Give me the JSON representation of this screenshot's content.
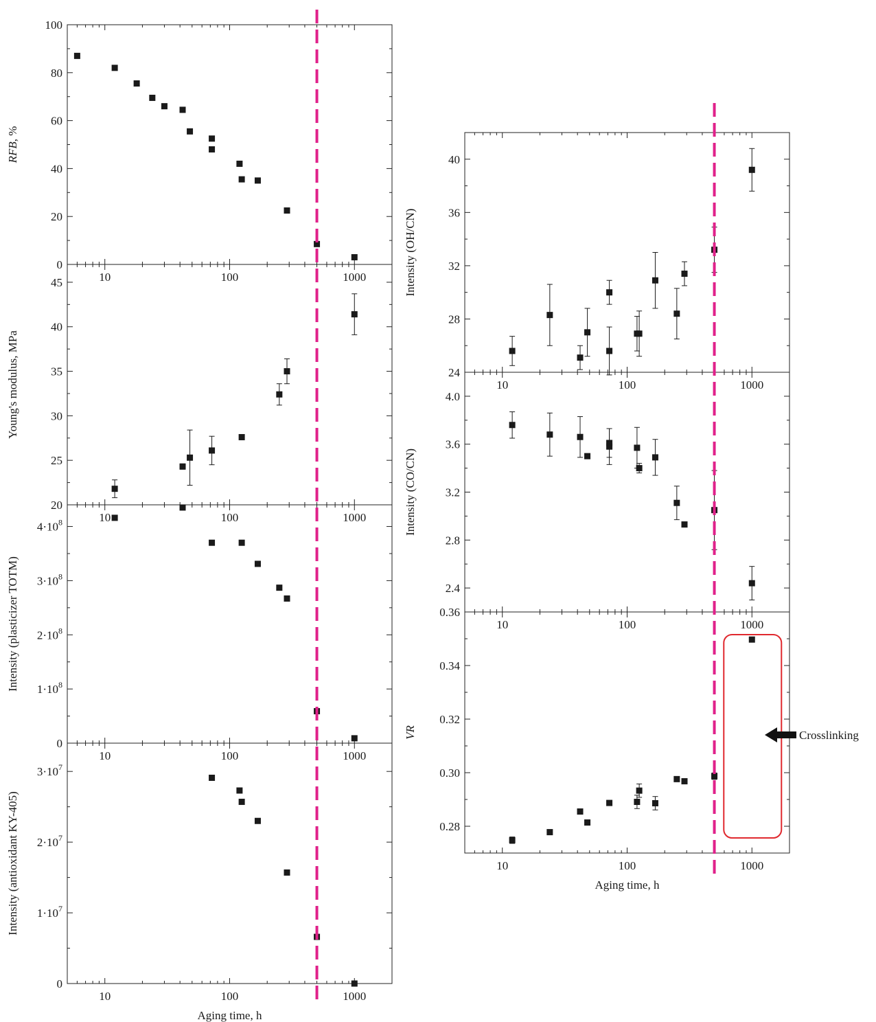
{
  "colors": {
    "marker": "#1a1a1a",
    "axis": "#222222",
    "threshold_line": "#e0218a",
    "highlight_box": "#e0282e",
    "arrow": "#111111"
  },
  "threshold_x": 500,
  "annotation": {
    "text": "Crosslinking",
    "arrow_icon": "left-arrow-icon"
  },
  "chart_data": [
    {
      "id": "rfb",
      "type": "scatter",
      "xscale": "log",
      "xlim": [
        5,
        2000
      ],
      "ylim": [
        0,
        100
      ],
      "yticks": [
        0,
        20,
        40,
        60,
        80,
        100
      ],
      "ytick_labels": [
        "0",
        "20",
        "40",
        "60",
        "80",
        "100"
      ],
      "xtick_labels": [
        "10",
        "100",
        "1000"
      ],
      "ylabel_main": "RFB",
      "ylabel_suffix": ", %",
      "xlabel": "",
      "points": [
        {
          "x": 6,
          "y": 87
        },
        {
          "x": 12,
          "y": 82
        },
        {
          "x": 18,
          "y": 75.5
        },
        {
          "x": 24,
          "y": 69.5
        },
        {
          "x": 30,
          "y": 66
        },
        {
          "x": 42,
          "y": 64.5
        },
        {
          "x": 48,
          "y": 55.5
        },
        {
          "x": 72,
          "y": 52.5
        },
        {
          "x": 72,
          "y": 48
        },
        {
          "x": 120,
          "y": 42
        },
        {
          "x": 125,
          "y": 35.5
        },
        {
          "x": 168,
          "y": 35
        },
        {
          "x": 288,
          "y": 22.5
        },
        {
          "x": 500,
          "y": 8.5
        },
        {
          "x": 1000,
          "y": 3
        }
      ]
    },
    {
      "id": "youngs",
      "type": "scatter",
      "xscale": "log",
      "xlim": [
        5,
        2000
      ],
      "ylim": [
        20,
        47
      ],
      "yticks": [
        20,
        25,
        30,
        35,
        40,
        45
      ],
      "ytick_labels": [
        "20",
        "25",
        "30",
        "35",
        "40",
        "45"
      ],
      "xtick_labels": [
        "10",
        "100",
        "1000"
      ],
      "ylabel": "Young's modulus, MPa",
      "xlabel": "",
      "points": [
        {
          "x": 12,
          "y": 21.8,
          "err": 1.0
        },
        {
          "x": 42,
          "y": 24.3,
          "err": 0.3
        },
        {
          "x": 48,
          "y": 25.3,
          "err": 3.1
        },
        {
          "x": 72,
          "y": 26.1,
          "err": 1.6
        },
        {
          "x": 125,
          "y": 27.6
        },
        {
          "x": 250,
          "y": 32.4,
          "err": 1.2
        },
        {
          "x": 288,
          "y": 35.0,
          "err": 1.4
        },
        {
          "x": 1000,
          "y": 41.4,
          "err": 2.3
        }
      ]
    },
    {
      "id": "totm",
      "type": "scatter",
      "xscale": "log",
      "xlim": [
        5,
        2000
      ],
      "ylim": [
        0,
        440000000
      ],
      "yticks": [
        0,
        100000000,
        200000000,
        300000000,
        400000000
      ],
      "ytick_labels": [
        {
          "mant": "0",
          "exp": ""
        },
        {
          "mant": "1·10",
          "exp": "8"
        },
        {
          "mant": "2·10",
          "exp": "8"
        },
        {
          "mant": "3·10",
          "exp": "8"
        },
        {
          "mant": "4·10",
          "exp": "8"
        }
      ],
      "xtick_labels": [
        "10",
        "100",
        "1000"
      ],
      "ylabel": "Intensity (plasticizer TOTM)",
      "xlabel": "",
      "points": [
        {
          "x": 12,
          "y": 416000000
        },
        {
          "x": 42,
          "y": 435000000
        },
        {
          "x": 72,
          "y": 370000000
        },
        {
          "x": 125,
          "y": 370000000
        },
        {
          "x": 168,
          "y": 331000000
        },
        {
          "x": 250,
          "y": 287000000
        },
        {
          "x": 288,
          "y": 267000000
        },
        {
          "x": 500,
          "y": 59000000
        },
        {
          "x": 1000,
          "y": 9000000
        }
      ]
    },
    {
      "id": "ky405",
      "type": "scatter",
      "xscale": "log",
      "xlim": [
        5,
        2000
      ],
      "ylim": [
        0,
        34000000
      ],
      "yticks": [
        0,
        10000000,
        20000000,
        30000000
      ],
      "ytick_labels": [
        {
          "mant": "0",
          "exp": ""
        },
        {
          "mant": "1·10",
          "exp": "7"
        },
        {
          "mant": "2·10",
          "exp": "7"
        },
        {
          "mant": "3·10",
          "exp": "7"
        }
      ],
      "xtick_labels": [
        "10",
        "100",
        "1000"
      ],
      "ylabel": "Intensity (antioxidant KY-405)",
      "xlabel": "Aging time, h",
      "points": [
        {
          "x": 72,
          "y": 29100000
        },
        {
          "x": 120,
          "y": 27300000
        },
        {
          "x": 125,
          "y": 25700000
        },
        {
          "x": 168,
          "y": 23000000
        },
        {
          "x": 288,
          "y": 15700000
        },
        {
          "x": 500,
          "y": 6600000
        },
        {
          "x": 1000,
          "y": 0
        }
      ]
    },
    {
      "id": "ohcn",
      "type": "scatter",
      "xscale": "log",
      "xlim": [
        5,
        2000
      ],
      "ylim": [
        24,
        42
      ],
      "yticks": [
        24,
        28,
        32,
        36,
        40
      ],
      "ytick_labels": [
        "24",
        "28",
        "32",
        "36",
        "40"
      ],
      "xtick_labels": [
        "10",
        "100",
        "1000"
      ],
      "ylabel": "Intensity (OH/CN)",
      "xlabel": "",
      "points": [
        {
          "x": 12,
          "y": 25.6,
          "err": 1.1
        },
        {
          "x": 24,
          "y": 28.3,
          "err": 2.3
        },
        {
          "x": 42,
          "y": 25.1,
          "err": 0.9
        },
        {
          "x": 48,
          "y": 27.0,
          "err": 1.8
        },
        {
          "x": 72,
          "y": 30.0,
          "err": 0.9
        },
        {
          "x": 72,
          "y": 25.6,
          "err": 1.8
        },
        {
          "x": 120,
          "y": 26.9,
          "err": 1.3
        },
        {
          "x": 125,
          "y": 26.9,
          "err": 1.7
        },
        {
          "x": 168,
          "y": 30.9,
          "err": 2.1
        },
        {
          "x": 250,
          "y": 28.4,
          "err": 1.9
        },
        {
          "x": 288,
          "y": 31.4,
          "err": 0.9
        },
        {
          "x": 500,
          "y": 33.2,
          "err": 1.7
        },
        {
          "x": 1000,
          "y": 39.2,
          "err": 1.6
        }
      ]
    },
    {
      "id": "cocn",
      "type": "scatter",
      "xscale": "log",
      "xlim": [
        5,
        2000
      ],
      "ylim": [
        2.2,
        4.2
      ],
      "yticks": [
        2.4,
        2.8,
        3.2,
        3.6,
        4.0
      ],
      "ytick_labels": [
        "2.4",
        "2.8",
        "3.2",
        "3.6",
        "4.0"
      ],
      "xtick_labels": [
        "10",
        "100",
        "1000"
      ],
      "ylabel": "Intensity (CO/CN)",
      "xlabel": "",
      "points": [
        {
          "x": 12,
          "y": 3.76,
          "err": 0.11
        },
        {
          "x": 24,
          "y": 3.68,
          "err": 0.18
        },
        {
          "x": 42,
          "y": 3.66,
          "err": 0.17
        },
        {
          "x": 48,
          "y": 3.5
        },
        {
          "x": 72,
          "y": 3.61,
          "err": 0.12
        },
        {
          "x": 72,
          "y": 3.58,
          "err": 0.15
        },
        {
          "x": 120,
          "y": 3.57,
          "err": 0.17
        },
        {
          "x": 125,
          "y": 3.4,
          "err": 0.04
        },
        {
          "x": 168,
          "y": 3.49,
          "err": 0.15
        },
        {
          "x": 250,
          "y": 3.11,
          "err": 0.14
        },
        {
          "x": 288,
          "y": 2.93
        },
        {
          "x": 500,
          "y": 3.05,
          "err": 0.33
        },
        {
          "x": 1000,
          "y": 2.44,
          "err": 0.14
        }
      ]
    },
    {
      "id": "vr",
      "type": "scatter",
      "xscale": "log",
      "xlim": [
        5,
        2000
      ],
      "ylim": [
        0.27,
        0.36
      ],
      "yticks": [
        0.28,
        0.3,
        0.32,
        0.34,
        0.36
      ],
      "ytick_labels": [
        "0.28",
        "0.30",
        "0.32",
        "0.34",
        "0.36"
      ],
      "xtick_labels": [
        "10",
        "100",
        "1000"
      ],
      "ylabel_main": "VR",
      "ylabel_suffix": "",
      "xlabel": "Aging time, h",
      "points": [
        {
          "x": 12,
          "y": 0.2748,
          "err": 0.0012
        },
        {
          "x": 24,
          "y": 0.2778
        },
        {
          "x": 42,
          "y": 0.2855
        },
        {
          "x": 48,
          "y": 0.2814
        },
        {
          "x": 72,
          "y": 0.2887,
          "err": 0.0008
        },
        {
          "x": 120,
          "y": 0.2891,
          "err": 0.0025
        },
        {
          "x": 125,
          "y": 0.2933,
          "err": 0.0025
        },
        {
          "x": 168,
          "y": 0.2886,
          "err": 0.0025
        },
        {
          "x": 250,
          "y": 0.2976
        },
        {
          "x": 288,
          "y": 0.2968
        },
        {
          "x": 500,
          "y": 0.2987,
          "err": 0.0012
        },
        {
          "x": 1000,
          "y": 0.3497
        }
      ]
    }
  ]
}
